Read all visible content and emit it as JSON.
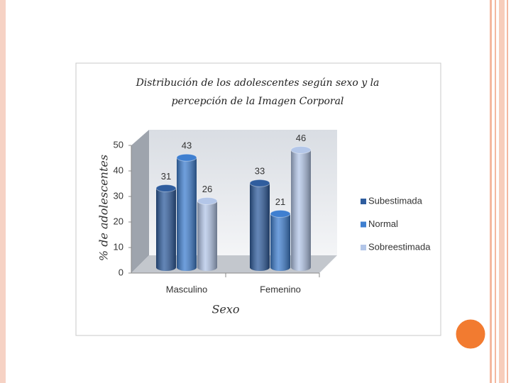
{
  "chart_data": {
    "type": "bar",
    "title": [
      "Distribución de los adolescentes según sexo  y la",
      "percepción de la Imagen Corporal"
    ],
    "x_label": "Sexo",
    "y_label": "% de adolescentes",
    "categories": [
      "Masculino",
      "Femenino"
    ],
    "series": [
      {
        "name": "Subestimada",
        "color": "#2f5d9e",
        "values": [
          31,
          33
        ]
      },
      {
        "name": "Normal",
        "color": "#3f7fd0",
        "values": [
          43,
          21
        ]
      },
      {
        "name": "Sobreestimada",
        "color": "#b3c6e8",
        "values": [
          26,
          46
        ]
      }
    ],
    "ylim": [
      0,
      50
    ],
    "yticks": [
      0,
      10,
      20,
      30,
      40,
      50
    ],
    "legend": "right"
  }
}
